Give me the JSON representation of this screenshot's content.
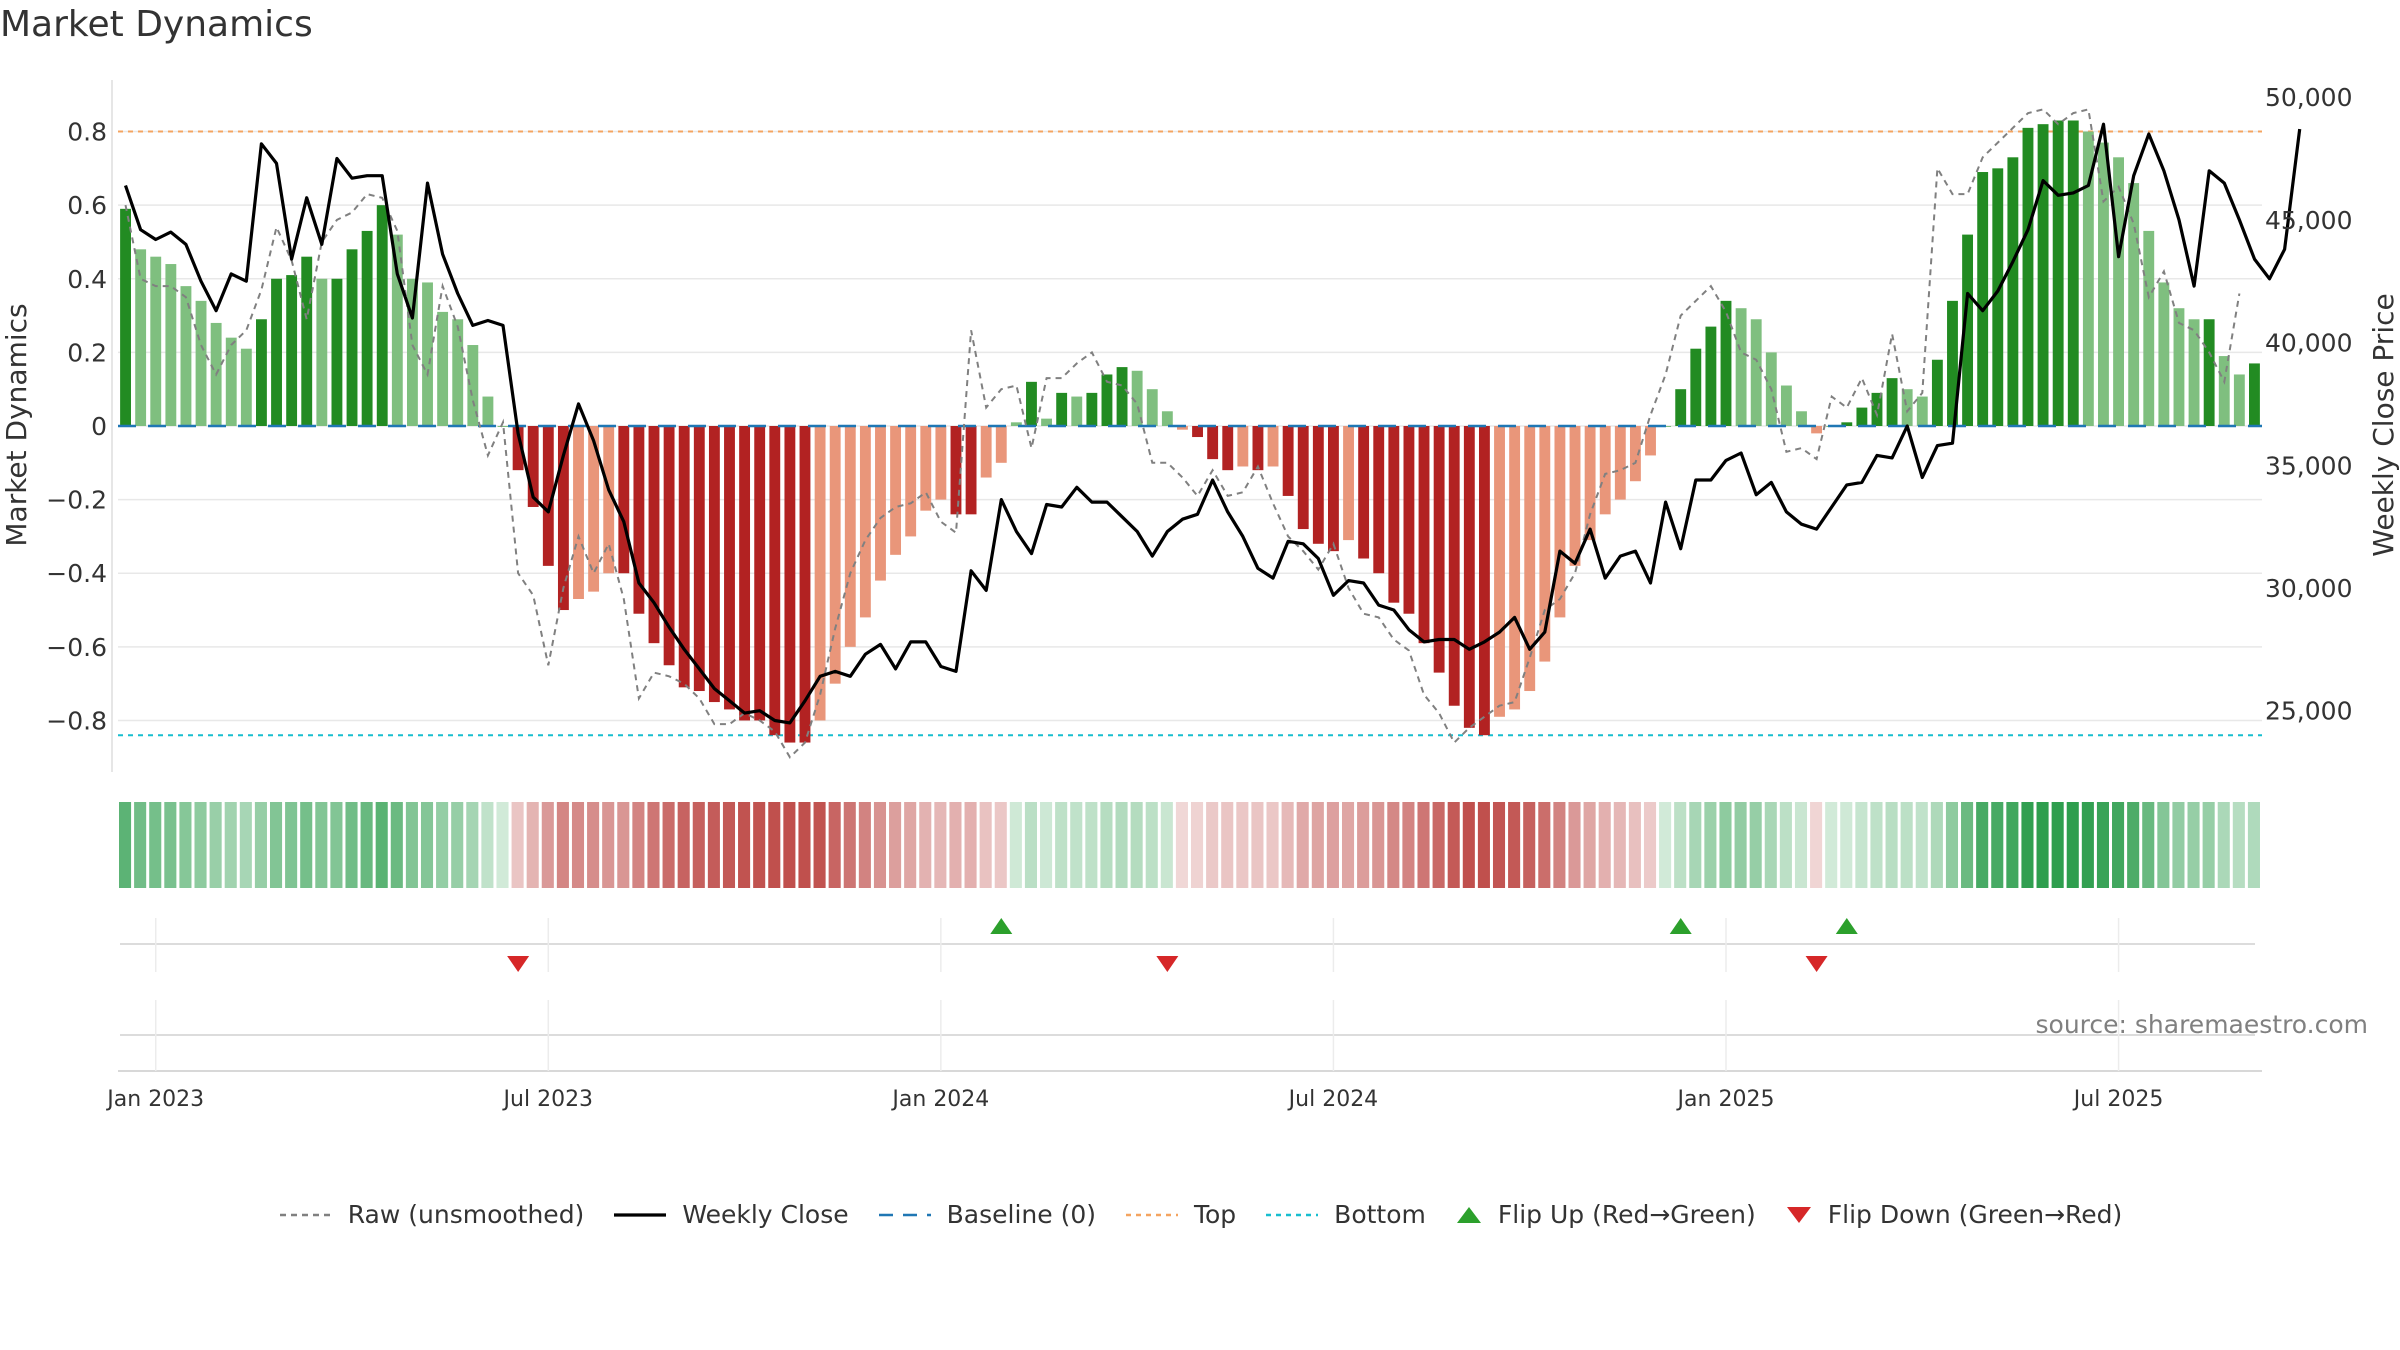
{
  "chart_data": {
    "type": "bar",
    "title": "Market Dynamics",
    "source": "source: sharemaestro.com",
    "ylabel_left": "Market Dynamics",
    "ylabel_right": "Weekly Close Price",
    "ylim_left": [
      -0.94,
      0.94
    ],
    "ylim_right": [
      22500,
      50700
    ],
    "yticks_left": [
      0.8,
      0.6,
      0.4,
      0.2,
      0,
      -0.2,
      -0.4,
      -0.6,
      -0.8
    ],
    "ytick_labels_left": [
      "0.8",
      "0.6",
      "0.4",
      "0.2",
      "0",
      "−0.2",
      "−0.4",
      "−0.6",
      "−0.8"
    ],
    "yticks_right": [
      50000,
      45000,
      40000,
      35000,
      30000,
      25000
    ],
    "ytick_labels_right": [
      "50,000",
      "45,000",
      "40,000",
      "35,000",
      "30,000",
      "25,000"
    ],
    "xticks": [
      {
        "label": "Jan 2023",
        "week": 2
      },
      {
        "label": "Jul 2023",
        "week": 28
      },
      {
        "label": "Jan 2024",
        "week": 54
      },
      {
        "label": "Jul 2024",
        "week": 80
      },
      {
        "label": "Jan 2025",
        "week": 106
      },
      {
        "label": "Jul 2025",
        "week": 132
      }
    ],
    "reference_lines": {
      "top": 0.8,
      "bottom": -0.84,
      "baseline": 0
    },
    "grid": true,
    "series": [
      {
        "name": "Market Dynamics (bars)",
        "values": [
          0.59,
          0.48,
          0.46,
          0.44,
          0.38,
          0.34,
          0.28,
          0.24,
          0.21,
          0.29,
          0.4,
          0.41,
          0.46,
          0.4,
          0.4,
          0.48,
          0.53,
          0.6,
          0.52,
          0.4,
          0.39,
          0.31,
          0.29,
          0.22,
          0.08,
          0.0,
          -0.12,
          -0.22,
          -0.38,
          -0.5,
          -0.47,
          -0.45,
          -0.4,
          -0.4,
          -0.51,
          -0.59,
          -0.65,
          -0.71,
          -0.72,
          -0.75,
          -0.77,
          -0.8,
          -0.8,
          -0.84,
          -0.86,
          -0.86,
          -0.8,
          -0.7,
          -0.6,
          -0.52,
          -0.42,
          -0.35,
          -0.3,
          -0.23,
          -0.2,
          -0.24,
          -0.24,
          -0.14,
          -0.1,
          0.01,
          0.12,
          0.02,
          0.09,
          0.08,
          0.09,
          0.14,
          0.16,
          0.15,
          0.1,
          0.04,
          -0.01,
          -0.03,
          -0.09,
          -0.12,
          -0.11,
          -0.12,
          -0.11,
          -0.19,
          -0.28,
          -0.32,
          -0.34,
          -0.31,
          -0.36,
          -0.4,
          -0.48,
          -0.51,
          -0.59,
          -0.67,
          -0.76,
          -0.82,
          -0.84,
          -0.79,
          -0.77,
          -0.72,
          -0.64,
          -0.52,
          -0.38,
          -0.31,
          -0.24,
          -0.2,
          -0.15,
          -0.08,
          0.0,
          0.1,
          0.21,
          0.27,
          0.34,
          0.32,
          0.29,
          0.2,
          0.11,
          0.04,
          -0.02,
          0.0,
          0.01,
          0.05,
          0.09,
          0.13,
          0.1,
          0.08,
          0.18,
          0.34,
          0.52,
          0.69,
          0.7,
          0.73,
          0.81,
          0.82,
          0.83,
          0.83,
          0.8,
          0.77,
          0.73,
          0.66,
          0.53,
          0.39,
          0.32,
          0.29,
          0.29,
          0.19,
          0.14,
          0.17
        ]
      },
      {
        "name": "Raw (unsmoothed)",
        "values": [
          0.6,
          0.4,
          0.38,
          0.38,
          0.35,
          0.22,
          0.14,
          0.22,
          0.26,
          0.37,
          0.54,
          0.45,
          0.29,
          0.5,
          0.56,
          0.58,
          0.63,
          0.62,
          0.53,
          0.22,
          0.14,
          0.38,
          0.27,
          0.07,
          -0.08,
          0.01,
          -0.4,
          -0.46,
          -0.65,
          -0.44,
          -0.3,
          -0.4,
          -0.32,
          -0.47,
          -0.74,
          -0.67,
          -0.68,
          -0.7,
          -0.74,
          -0.81,
          -0.81,
          -0.78,
          -0.8,
          -0.83,
          -0.9,
          -0.86,
          -0.73,
          -0.55,
          -0.4,
          -0.31,
          -0.25,
          -0.22,
          -0.21,
          -0.18,
          -0.26,
          -0.29,
          0.26,
          0.05,
          0.1,
          0.11,
          -0.06,
          0.13,
          0.13,
          0.17,
          0.2,
          0.12,
          0.11,
          0.06,
          -0.1,
          -0.1,
          -0.14,
          -0.19,
          -0.12,
          -0.19,
          -0.18,
          -0.11,
          -0.21,
          -0.3,
          -0.34,
          -0.39,
          -0.32,
          -0.44,
          -0.51,
          -0.52,
          -0.58,
          -0.61,
          -0.73,
          -0.78,
          -0.86,
          -0.82,
          -0.79,
          -0.76,
          -0.75,
          -0.63,
          -0.5,
          -0.47,
          -0.4,
          -0.24,
          -0.13,
          -0.12,
          -0.1,
          0.03,
          0.14,
          0.3,
          0.34,
          0.38,
          0.31,
          0.2,
          0.18,
          0.1,
          -0.07,
          -0.06,
          -0.09,
          0.08,
          0.05,
          0.13,
          0.03,
          0.25,
          0.04,
          0.09,
          0.7,
          0.63,
          0.63,
          0.73,
          0.77,
          0.81,
          0.85,
          0.86,
          0.82,
          0.85,
          0.86,
          0.61,
          0.65,
          0.55,
          0.35,
          0.42,
          0.28,
          0.26,
          0.2,
          0.12,
          0.36
        ]
      },
      {
        "name": "Weekly Close",
        "values": [
          46400,
          44600,
          44200,
          44500,
          44000,
          42500,
          41300,
          42800,
          42500,
          48100,
          47300,
          43400,
          45900,
          44000,
          47500,
          46700,
          46800,
          46800,
          42800,
          41000,
          46500,
          43600,
          42000,
          40700,
          40900,
          40700,
          36300,
          33700,
          33100,
          35400,
          37500,
          36000,
          34000,
          32700,
          30200,
          29400,
          28400,
          27500,
          26700,
          25900,
          25400,
          24900,
          25000,
          24600,
          24500,
          25400,
          26400,
          26600,
          26400,
          27300,
          27700,
          26700,
          27800,
          27800,
          26800,
          26600,
          30700,
          29900,
          33600,
          32300,
          31400,
          33400,
          33300,
          34100,
          33500,
          33500,
          32900,
          32300,
          31300,
          32300,
          32800,
          33000,
          34400,
          33100,
          32100,
          30800,
          30400,
          31900,
          31800,
          31200,
          29700,
          30300,
          30200,
          29300,
          29100,
          28300,
          27800,
          27900,
          27900,
          27500,
          27800,
          28200,
          28800,
          27500,
          28200,
          31500,
          31000,
          32400,
          30400,
          31300,
          31500,
          30200,
          33500,
          31600,
          34400,
          34400,
          35200,
          35500,
          33800,
          34300,
          33100,
          32600,
          32400,
          33300,
          34200,
          34300,
          35400,
          35300,
          36600,
          34500,
          35800,
          35900,
          42000,
          41300,
          42100,
          43300,
          44600,
          46600,
          46000,
          46100,
          46400,
          48900,
          43500,
          46800,
          48500,
          47000,
          45000,
          42300,
          47000,
          46500,
          45000,
          43400,
          42600,
          43800,
          48700
        ]
      }
    ],
    "bar_colors": {
      "pos_strong": "#228b22",
      "pos_weak": "#7fbf7f",
      "neg_strong": "#b22222",
      "neg_weak": "#e9967a"
    },
    "regime_strip": {
      "colors_note": "per-week strength color strip",
      "green": "#2e9e4e",
      "red": "#c0504d"
    },
    "flip_up_weeks": [
      58,
      103,
      114
    ],
    "flip_down_weeks": [
      26,
      69,
      112
    ],
    "colors": {
      "raw": "#808080",
      "close": "#000000",
      "baseline": "#1f77b4",
      "top": "#f4a460",
      "bottom": "#17becf",
      "flip_up": "#2ca02c",
      "flip_down": "#d62728",
      "grid": "#e8e8e8",
      "axis_text": "#333333"
    },
    "legend": [
      {
        "key": "raw",
        "label": "Raw (unsmoothed)",
        "style": "dashed-gray"
      },
      {
        "key": "close",
        "label": "Weekly Close",
        "style": "solid-black"
      },
      {
        "key": "baseline",
        "label": "Baseline (0)",
        "style": "dashed-blue"
      },
      {
        "key": "top",
        "label": "Top",
        "style": "dotted-orange"
      },
      {
        "key": "bottom",
        "label": "Bottom",
        "style": "dotted-cyan"
      },
      {
        "key": "flip_up",
        "label": "Flip Up (Red→Green)",
        "style": "triangle-up"
      },
      {
        "key": "flip_down",
        "label": "Flip Down (Green→Red)",
        "style": "triangle-down"
      }
    ],
    "legend_position": "bottom-center"
  }
}
